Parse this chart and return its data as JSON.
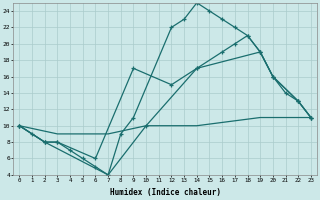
{
  "xlabel": "Humidex (Indice chaleur)",
  "bg_color": "#cce8e8",
  "grid_color": "#aacccc",
  "line_color": "#1a6e6e",
  "xlim": [
    -0.5,
    23.5
  ],
  "ylim": [
    4,
    25
  ],
  "xticks": [
    0,
    1,
    2,
    3,
    4,
    5,
    6,
    7,
    8,
    9,
    10,
    11,
    12,
    13,
    14,
    15,
    16,
    17,
    18,
    19,
    20,
    21,
    22,
    23
  ],
  "yticks": [
    4,
    6,
    8,
    10,
    12,
    14,
    16,
    18,
    20,
    22,
    24
  ],
  "series1_x": [
    0,
    1,
    2,
    3,
    4,
    5,
    6,
    7,
    8,
    9,
    12,
    13,
    14,
    15,
    16,
    17,
    18,
    19,
    20,
    21,
    22,
    23
  ],
  "series1_y": [
    10,
    9,
    8,
    8,
    7,
    6,
    5,
    4,
    9,
    11,
    22,
    23,
    25,
    24,
    23,
    22,
    21,
    19,
    16,
    14,
    13,
    11
  ],
  "series2_x": [
    0,
    2,
    3,
    6,
    9,
    12,
    14,
    16,
    17,
    18,
    19,
    20,
    22,
    23
  ],
  "series2_y": [
    10,
    8,
    8,
    6,
    17,
    15,
    17,
    19,
    20,
    21,
    19,
    16,
    13,
    11
  ],
  "series3_x": [
    0,
    2,
    7,
    10,
    14,
    19,
    20,
    22,
    23
  ],
  "series3_y": [
    10,
    8,
    4,
    10,
    17,
    19,
    16,
    13,
    11
  ],
  "series4_x": [
    0,
    3,
    7,
    10,
    14,
    19,
    23
  ],
  "series4_y": [
    10,
    9,
    9,
    10,
    10,
    11,
    11
  ]
}
